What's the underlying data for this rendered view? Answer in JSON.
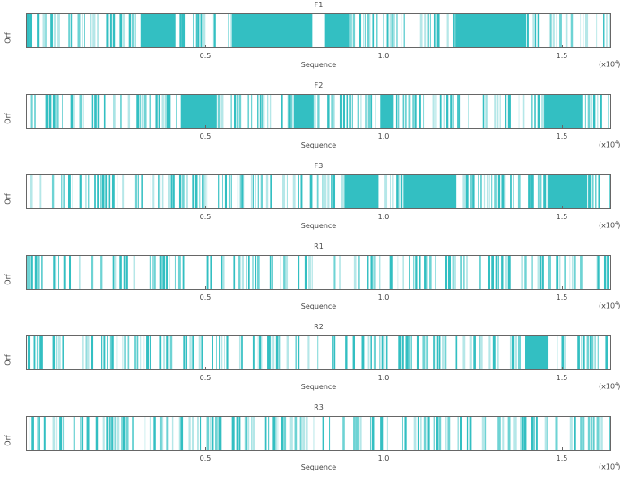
{
  "chart_data": {
    "type": "heatmap",
    "description": "Open reading frame (ORF) maps across six reading frames of a sequence",
    "xlabel": "Sequence",
    "ylabel": "Orf",
    "x_multiplier": "(x10^4)",
    "x_range_bp": [
      0,
      16380
    ],
    "x_ticks": [
      {
        "value": 5000,
        "label": "0.5"
      },
      {
        "value": 10000,
        "label": "1.0"
      },
      {
        "value": 15000,
        "label": "1.5"
      }
    ],
    "colors": {
      "orf_dark": "#33BFC2",
      "orf_mid": "#6ED3D4",
      "orf_light": "#B5E7E8",
      "background": "#FFFFFF",
      "frame": "#666666"
    },
    "tracks": [
      {
        "name": "F1",
        "density": 0.55,
        "seed": 11,
        "solid_regions_bp": [
          [
            3190,
            4170
          ],
          [
            5750,
            8010
          ],
          [
            8370,
            9050
          ],
          [
            12040,
            14020
          ]
        ]
      },
      {
        "name": "F2",
        "density": 0.58,
        "seed": 23,
        "solid_regions_bp": [
          [
            4320,
            5330
          ],
          [
            7490,
            8040
          ],
          [
            9920,
            10300
          ],
          [
            14520,
            15580
          ]
        ]
      },
      {
        "name": "F3",
        "density": 0.6,
        "seed": 37,
        "solid_regions_bp": [
          [
            8920,
            9850
          ],
          [
            10580,
            12010
          ],
          [
            14620,
            15730
          ]
        ]
      },
      {
        "name": "R1",
        "density": 0.55,
        "seed": 41,
        "solid_regions_bp": []
      },
      {
        "name": "R2",
        "density": 0.55,
        "seed": 53,
        "solid_regions_bp": [
          [
            13990,
            14620
          ]
        ]
      },
      {
        "name": "R3",
        "density": 0.6,
        "seed": 67,
        "solid_regions_bp": []
      }
    ]
  },
  "labels": {
    "ylabel": "Orf",
    "xlabel": "Sequence",
    "tick_0_5": "0.5",
    "tick_1_0": "1.0",
    "tick_1_5": "1.5",
    "mult_base": "(x10",
    "mult_exp": "4",
    "mult_close": ")"
  }
}
